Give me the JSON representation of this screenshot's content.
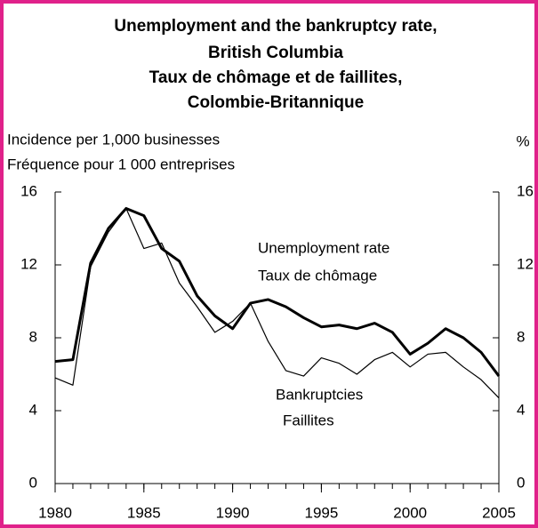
{
  "chart_data": {
    "type": "line",
    "title": [
      "Unemployment and the bankruptcy rate,",
      "British Columbia",
      "Taux de chômage et de faillites,",
      "Colombie-Britannique"
    ],
    "ylabel": [
      "Incidence per 1,000 businesses",
      "Fréquence pour 1 000 entreprises"
    ],
    "y2label": "%",
    "x": [
      1980,
      1981,
      1982,
      1983,
      1984,
      1985,
      1986,
      1987,
      1988,
      1989,
      1990,
      1991,
      1992,
      1993,
      1994,
      1995,
      1996,
      1997,
      1998,
      1999,
      2000,
      2001,
      2002,
      2003,
      2004,
      2005
    ],
    "series": [
      {
        "name": "Unemployment rate",
        "color": "#000000",
        "axis": "y2",
        "values": [
          6.7,
          6.8,
          12.1,
          14.0,
          15.1,
          14.7,
          12.9,
          12.2,
          10.3,
          9.2,
          8.5,
          9.9,
          10.1,
          9.7,
          9.1,
          8.6,
          8.7,
          8.5,
          8.8,
          8.3,
          7.1,
          7.7,
          8.5,
          8.0,
          7.2,
          5.9
        ]
      },
      {
        "name": "Bankruptcies",
        "color": "#000000",
        "values": [
          5.8,
          5.4,
          11.9,
          13.8,
          15.1,
          12.9,
          13.2,
          11.0,
          9.7,
          8.3,
          8.9,
          9.9,
          7.8,
          6.2,
          5.9,
          6.9,
          6.6,
          6.0,
          6.8,
          7.2,
          6.4,
          7.1,
          7.2,
          6.4,
          5.7,
          4.7
        ]
      }
    ],
    "annotations": [
      [
        "Unemployment rate",
        "Taux de chômage"
      ],
      [
        "Bankruptcies",
        "Faillites"
      ]
    ],
    "xlim": [
      1980,
      2005
    ],
    "xticks": [
      1980,
      1985,
      1990,
      1995,
      2000,
      2005
    ],
    "ylim": [
      0,
      16
    ],
    "yticks": [
      0,
      4,
      8,
      12,
      16
    ],
    "y2lim": [
      0,
      16
    ],
    "y2ticks": [
      0,
      4,
      8,
      12,
      16
    ],
    "border_color": "#e0218a"
  }
}
